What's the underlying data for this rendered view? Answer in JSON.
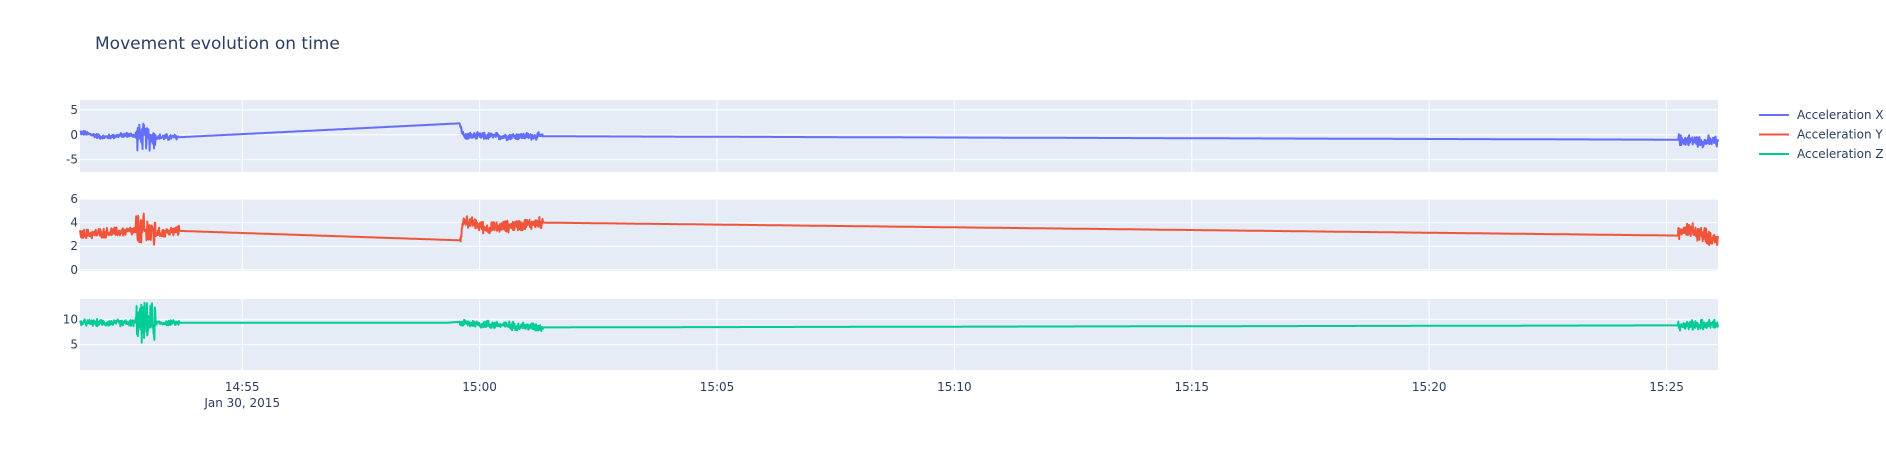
{
  "chart_data": {
    "type": "line",
    "title": "Movement evolution on time",
    "x_date_label": "Jan 30, 2015",
    "x_ticks": [
      "14:55",
      "15:00",
      "15:05",
      "15:10",
      "15:15",
      "15:20",
      "15:25"
    ],
    "xlim": [
      "14:51:35",
      "15:26:05"
    ],
    "grid": true,
    "legend_position": "top-right",
    "colors": {
      "plot_bg": "#e5ecf6",
      "grid": "#ffffff",
      "text": "#2a3f5f"
    },
    "series": [
      {
        "name": "Acceleration X",
        "color": "#636efa",
        "y_ticks": [
          "-5",
          "0",
          "5"
        ],
        "ylim": [
          -7.5,
          7
        ],
        "anchors": [
          [
            "14:51:35",
            0.5
          ],
          [
            "14:52:05",
            -0.5
          ],
          [
            "14:52:35",
            0
          ],
          [
            "14:53:00",
            -0.5
          ],
          [
            "14:53:40",
            -0.5
          ],
          [
            "14:59:35",
            2.3
          ],
          [
            "14:59:40",
            -0.3
          ],
          [
            "15:01:20",
            -0.3
          ],
          [
            "15:25:15",
            -1.0
          ],
          [
            "15:26:05",
            -1.5
          ]
        ],
        "noise": [
          [
            "14:51:35",
            "14:52:45",
            0.6
          ],
          [
            "14:52:45",
            "14:53:10",
            3.2
          ],
          [
            "14:53:10",
            "14:53:40",
            0.8
          ],
          [
            "14:59:35",
            "15:01:20",
            0.9
          ],
          [
            "15:25:15",
            "15:26:05",
            1.4
          ]
        ]
      },
      {
        "name": "Acceleration Y",
        "color": "#ef553b",
        "y_ticks": [
          "0",
          "2",
          "4",
          "6"
        ],
        "ylim": [
          -0.1,
          6
        ],
        "anchors": [
          [
            "14:51:35",
            3.0
          ],
          [
            "14:52:45",
            3.3
          ],
          [
            "14:53:10",
            3.1
          ],
          [
            "14:53:40",
            3.3
          ],
          [
            "14:59:35",
            2.5
          ],
          [
            "14:59:40",
            4.2
          ],
          [
            "15:00:10",
            3.5
          ],
          [
            "15:01:20",
            4.0
          ],
          [
            "15:25:15",
            2.9
          ],
          [
            "15:25:20",
            3.6
          ],
          [
            "15:26:05",
            2.5
          ]
        ],
        "noise": [
          [
            "14:51:35",
            "14:52:45",
            0.5
          ],
          [
            "14:52:45",
            "14:53:10",
            1.8
          ],
          [
            "14:53:10",
            "14:53:40",
            0.5
          ],
          [
            "14:59:35",
            "15:01:20",
            0.6
          ],
          [
            "15:25:15",
            "15:26:05",
            0.8
          ]
        ]
      },
      {
        "name": "Acceleration Z",
        "color": "#00cc96",
        "y_ticks": [
          "5",
          "10"
        ],
        "ylim": [
          0,
          14
        ],
        "anchors": [
          [
            "14:51:35",
            9.3
          ],
          [
            "14:53:40",
            9.3
          ],
          [
            "14:59:35",
            9.3
          ],
          [
            "15:01:20",
            8.4
          ],
          [
            "15:25:15",
            8.8
          ],
          [
            "15:26:05",
            9.0
          ]
        ],
        "noise": [
          [
            "14:51:35",
            "14:52:45",
            0.8
          ],
          [
            "14:52:45",
            "14:53:10",
            4.5
          ],
          [
            "14:53:10",
            "14:53:40",
            0.6
          ],
          [
            "14:59:35",
            "15:01:20",
            1.0
          ],
          [
            "15:25:15",
            "15:26:05",
            1.2
          ]
        ]
      }
    ]
  }
}
